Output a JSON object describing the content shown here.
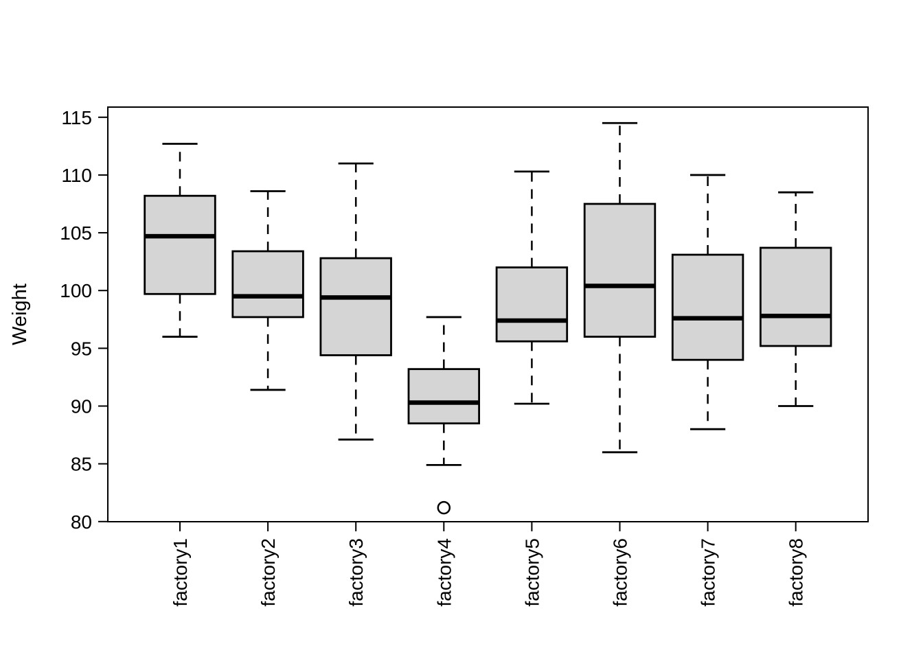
{
  "figure": {
    "background": "#ffffff"
  },
  "colors": {
    "line": "#000000",
    "box_fill": "#d5d5d5",
    "background": "#ffffff"
  },
  "chart_data": {
    "type": "boxplot",
    "title": "",
    "xlabel": "",
    "ylabel": "Weight",
    "ylim": [
      80,
      115
    ],
    "yticks": [
      80,
      85,
      90,
      95,
      100,
      105,
      110,
      115
    ],
    "grid": false,
    "legend": "none",
    "categories": [
      "factory1",
      "factory2",
      "factory3",
      "factory4",
      "factory5",
      "factory6",
      "factory7",
      "factory8"
    ],
    "series": [
      {
        "name": "factory1",
        "whisker_low": 96.0,
        "q1": 99.7,
        "median": 104.7,
        "q3": 108.2,
        "whisker_high": 112.7,
        "outliers": []
      },
      {
        "name": "factory2",
        "whisker_low": 91.4,
        "q1": 97.7,
        "median": 99.5,
        "q3": 103.4,
        "whisker_high": 108.6,
        "outliers": []
      },
      {
        "name": "factory3",
        "whisker_low": 87.1,
        "q1": 94.4,
        "median": 99.4,
        "q3": 102.8,
        "whisker_high": 111.0,
        "outliers": []
      },
      {
        "name": "factory4",
        "whisker_low": 84.9,
        "q1": 88.5,
        "median": 90.3,
        "q3": 93.2,
        "whisker_high": 97.7,
        "outliers": [
          81.2
        ]
      },
      {
        "name": "factory5",
        "whisker_low": 90.2,
        "q1": 95.6,
        "median": 97.4,
        "q3": 102.0,
        "whisker_high": 110.3,
        "outliers": []
      },
      {
        "name": "factory6",
        "whisker_low": 86.0,
        "q1": 96.0,
        "median": 100.4,
        "q3": 107.5,
        "whisker_high": 114.5,
        "outliers": []
      },
      {
        "name": "factory7",
        "whisker_low": 88.0,
        "q1": 94.0,
        "median": 97.6,
        "q3": 103.1,
        "whisker_high": 110.0,
        "outliers": []
      },
      {
        "name": "factory8",
        "whisker_low": 90.0,
        "q1": 95.2,
        "median": 97.8,
        "q3": 103.7,
        "whisker_high": 108.5,
        "outliers": []
      }
    ]
  }
}
